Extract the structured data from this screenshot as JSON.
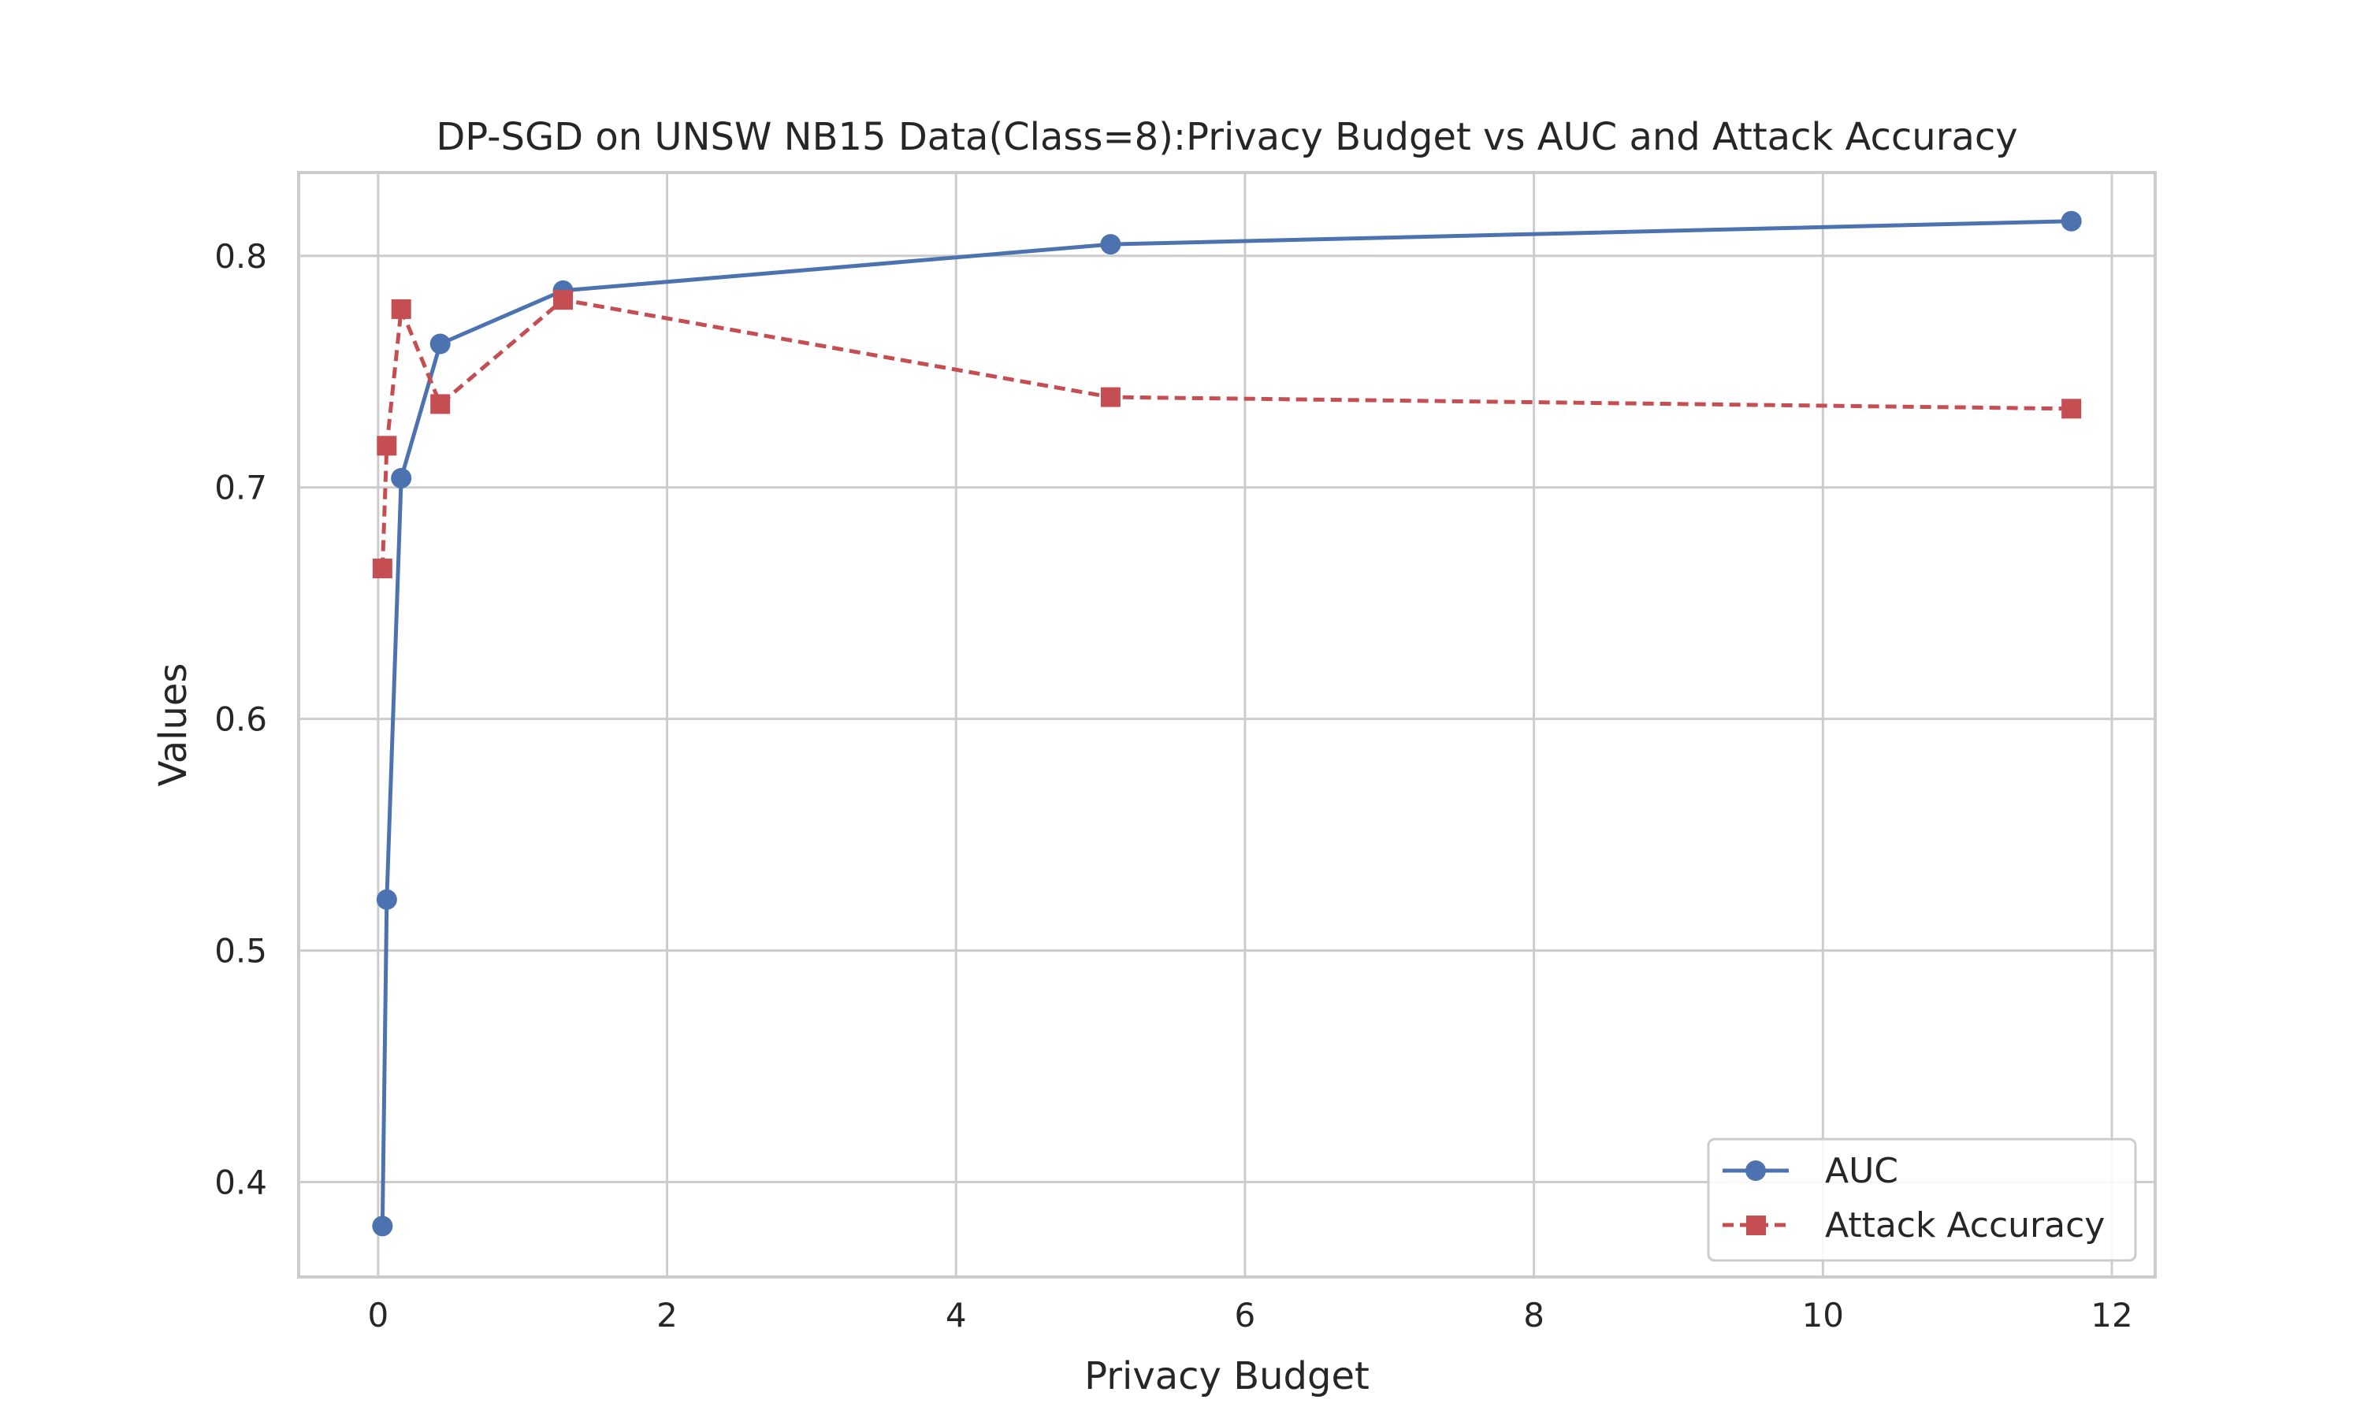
{
  "chart_data": {
    "type": "line",
    "title": "DP-SGD on UNSW NB15 Data(Class=8):Privacy Budget vs AUC and Attack Accuracy",
    "xlabel": "Privacy Budget",
    "ylabel": "Values",
    "xlim": [
      -0.55,
      12.3
    ],
    "ylim": [
      0.359,
      0.836
    ],
    "xticks": [
      0,
      2,
      4,
      6,
      8,
      10,
      12
    ],
    "xtick_labels": [
      "0",
      "2",
      "4",
      "6",
      "8",
      "10",
      "12"
    ],
    "yticks": [
      0.4,
      0.5,
      0.6,
      0.7,
      0.8
    ],
    "ytick_labels": [
      "0.4",
      "0.5",
      "0.6",
      "0.7",
      "0.8"
    ],
    "grid": true,
    "legend_position": "bottom-right",
    "series": [
      {
        "name": "AUC",
        "color": "#4c72b0",
        "marker": "circle",
        "line_style": "solid",
        "x": [
          0.03,
          0.06,
          0.16,
          0.43,
          1.28,
          5.07,
          11.72
        ],
        "y": [
          0.381,
          0.522,
          0.704,
          0.762,
          0.785,
          0.805,
          0.815
        ]
      },
      {
        "name": "Attack Accuracy",
        "color": "#c44e52",
        "marker": "square",
        "line_style": "dashed",
        "x": [
          0.03,
          0.06,
          0.16,
          0.43,
          1.28,
          5.07,
          11.72
        ],
        "y": [
          0.665,
          0.718,
          0.777,
          0.736,
          0.781,
          0.739,
          0.734
        ]
      }
    ]
  }
}
